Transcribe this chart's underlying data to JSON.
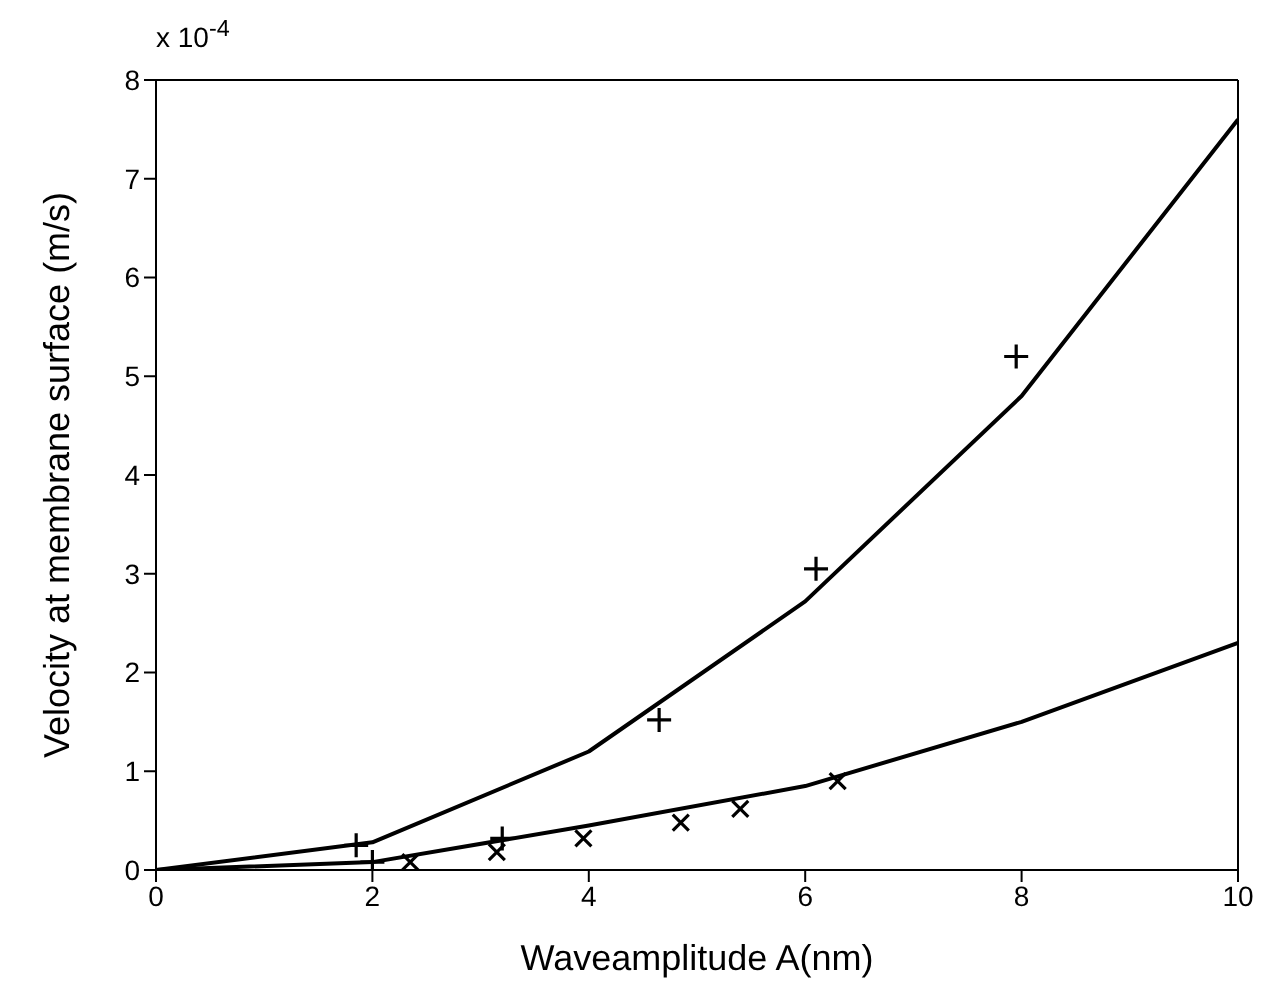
{
  "chart_data": {
    "type": "line",
    "xlabel": "Waveamplitude A(nm)",
    "ylabel": "Velocity at membrane surface (m/s)",
    "annotations": [
      "x 10$^{-4}$"
    ],
    "xlim": [
      0,
      10
    ],
    "xticks": [
      0,
      2,
      4,
      6,
      8,
      10
    ],
    "ylim": [
      0,
      8
    ],
    "yticks": [
      0,
      1,
      2,
      3,
      4,
      5,
      6,
      7,
      8
    ],
    "series": [
      {
        "type": "line",
        "color": "#000000",
        "marker": "none",
        "line_style": "solid",
        "x": [
          0,
          2,
          4,
          6,
          8,
          10
        ],
        "values": [
          0,
          0.28,
          1.2,
          2.72,
          4.8,
          7.6
        ]
      },
      {
        "type": "line",
        "color": "#000000",
        "marker": "none",
        "line_style": "solid",
        "x": [
          0,
          2,
          4,
          6,
          8,
          10
        ],
        "values": [
          0,
          0.08,
          0.45,
          0.85,
          1.5,
          2.3
        ]
      },
      {
        "type": "scatter",
        "color": "#000000",
        "marker": "plus",
        "x": [
          1.85,
          2.0,
          3.2,
          4.65,
          6.1,
          7.95
        ],
        "values": [
          0.25,
          0.08,
          0.32,
          1.52,
          3.05,
          5.2
        ]
      },
      {
        "type": "scatter",
        "color": "#000000",
        "marker": "cross",
        "x": [
          2.35,
          3.15,
          3.95,
          4.85,
          5.4,
          6.3
        ],
        "values": [
          0.08,
          0.18,
          0.32,
          0.48,
          0.62,
          0.9
        ]
      }
    ]
  }
}
